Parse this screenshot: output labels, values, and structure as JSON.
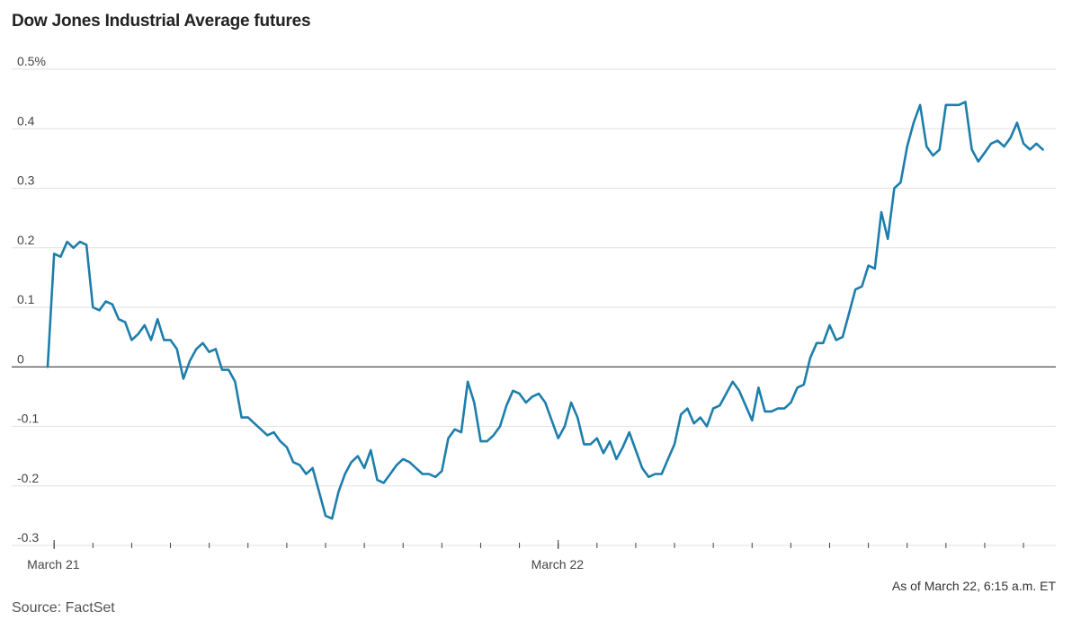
{
  "chart_data": {
    "type": "line",
    "title": "Dow Jones Industrial Average futures",
    "xlabel": "",
    "ylabel": "",
    "ylim": [
      -0.3,
      0.5
    ],
    "yticks": [
      {
        "value": 0.5,
        "label": "0.5%"
      },
      {
        "value": 0.4,
        "label": "0.4"
      },
      {
        "value": 0.3,
        "label": "0.3"
      },
      {
        "value": 0.2,
        "label": "0.2"
      },
      {
        "value": 0.1,
        "label": "0.1"
      },
      {
        "value": 0,
        "label": "0"
      },
      {
        "value": -0.1,
        "label": "-0.1"
      },
      {
        "value": -0.2,
        "label": "-0.2"
      },
      {
        "value": -0.3,
        "label": "-0.3"
      }
    ],
    "xlim": [
      0,
      156
    ],
    "xtick_labels": [
      {
        "at": 1,
        "label": "March 21"
      },
      {
        "at": 79,
        "label": "March 22"
      }
    ],
    "grid": true,
    "line_color": "#1d7eab",
    "series": [
      {
        "values": [
          0.0,
          0.19,
          0.185,
          0.21,
          0.2,
          0.21,
          0.205,
          0.1,
          0.095,
          0.11,
          0.105,
          0.08,
          0.075,
          0.045,
          0.055,
          0.07,
          0.045,
          0.08,
          0.045,
          0.045,
          0.03,
          -0.02,
          0.01,
          0.03,
          0.04,
          0.025,
          0.03,
          -0.005,
          -0.005,
          -0.025,
          -0.085,
          -0.085,
          -0.095,
          -0.105,
          -0.115,
          -0.11,
          -0.125,
          -0.135,
          -0.16,
          -0.165,
          -0.18,
          -0.17,
          -0.21,
          -0.25,
          -0.255,
          -0.21,
          -0.18,
          -0.16,
          -0.15,
          -0.17,
          -0.14,
          -0.19,
          -0.195,
          -0.18,
          -0.165,
          -0.155,
          -0.16,
          -0.17,
          -0.18,
          -0.18,
          -0.185,
          -0.175,
          -0.12,
          -0.105,
          -0.11,
          -0.025,
          -0.06,
          -0.125,
          -0.125,
          -0.115,
          -0.1,
          -0.065,
          -0.04,
          -0.045,
          -0.06,
          -0.05,
          -0.045,
          -0.06,
          -0.09,
          -0.12,
          -0.1,
          -0.06,
          -0.085,
          -0.13,
          -0.13,
          -0.12,
          -0.145,
          -0.125,
          -0.155,
          -0.135,
          -0.11,
          -0.14,
          -0.17,
          -0.185,
          -0.18,
          -0.18,
          -0.155,
          -0.13,
          -0.08,
          -0.07,
          -0.095,
          -0.085,
          -0.1,
          -0.07,
          -0.065,
          -0.045,
          -0.025,
          -0.04,
          -0.065,
          -0.09,
          -0.035,
          -0.075,
          -0.075,
          -0.07,
          -0.07,
          -0.06,
          -0.035,
          -0.03,
          0.015,
          0.04,
          0.04,
          0.07,
          0.045,
          0.05,
          0.09,
          0.13,
          0.135,
          0.17,
          0.165,
          0.26,
          0.215,
          0.3,
          0.31,
          0.37,
          0.41,
          0.44,
          0.37,
          0.355,
          0.365,
          0.44,
          0.44,
          0.44,
          0.445,
          0.365,
          0.345,
          0.36,
          0.375,
          0.38,
          0.37,
          0.385,
          0.41,
          0.375,
          0.365,
          0.375,
          0.365
        ]
      }
    ]
  },
  "footer": {
    "note": "As of March 22, 6:15 a.m. ET",
    "source": "Source: FactSet"
  }
}
